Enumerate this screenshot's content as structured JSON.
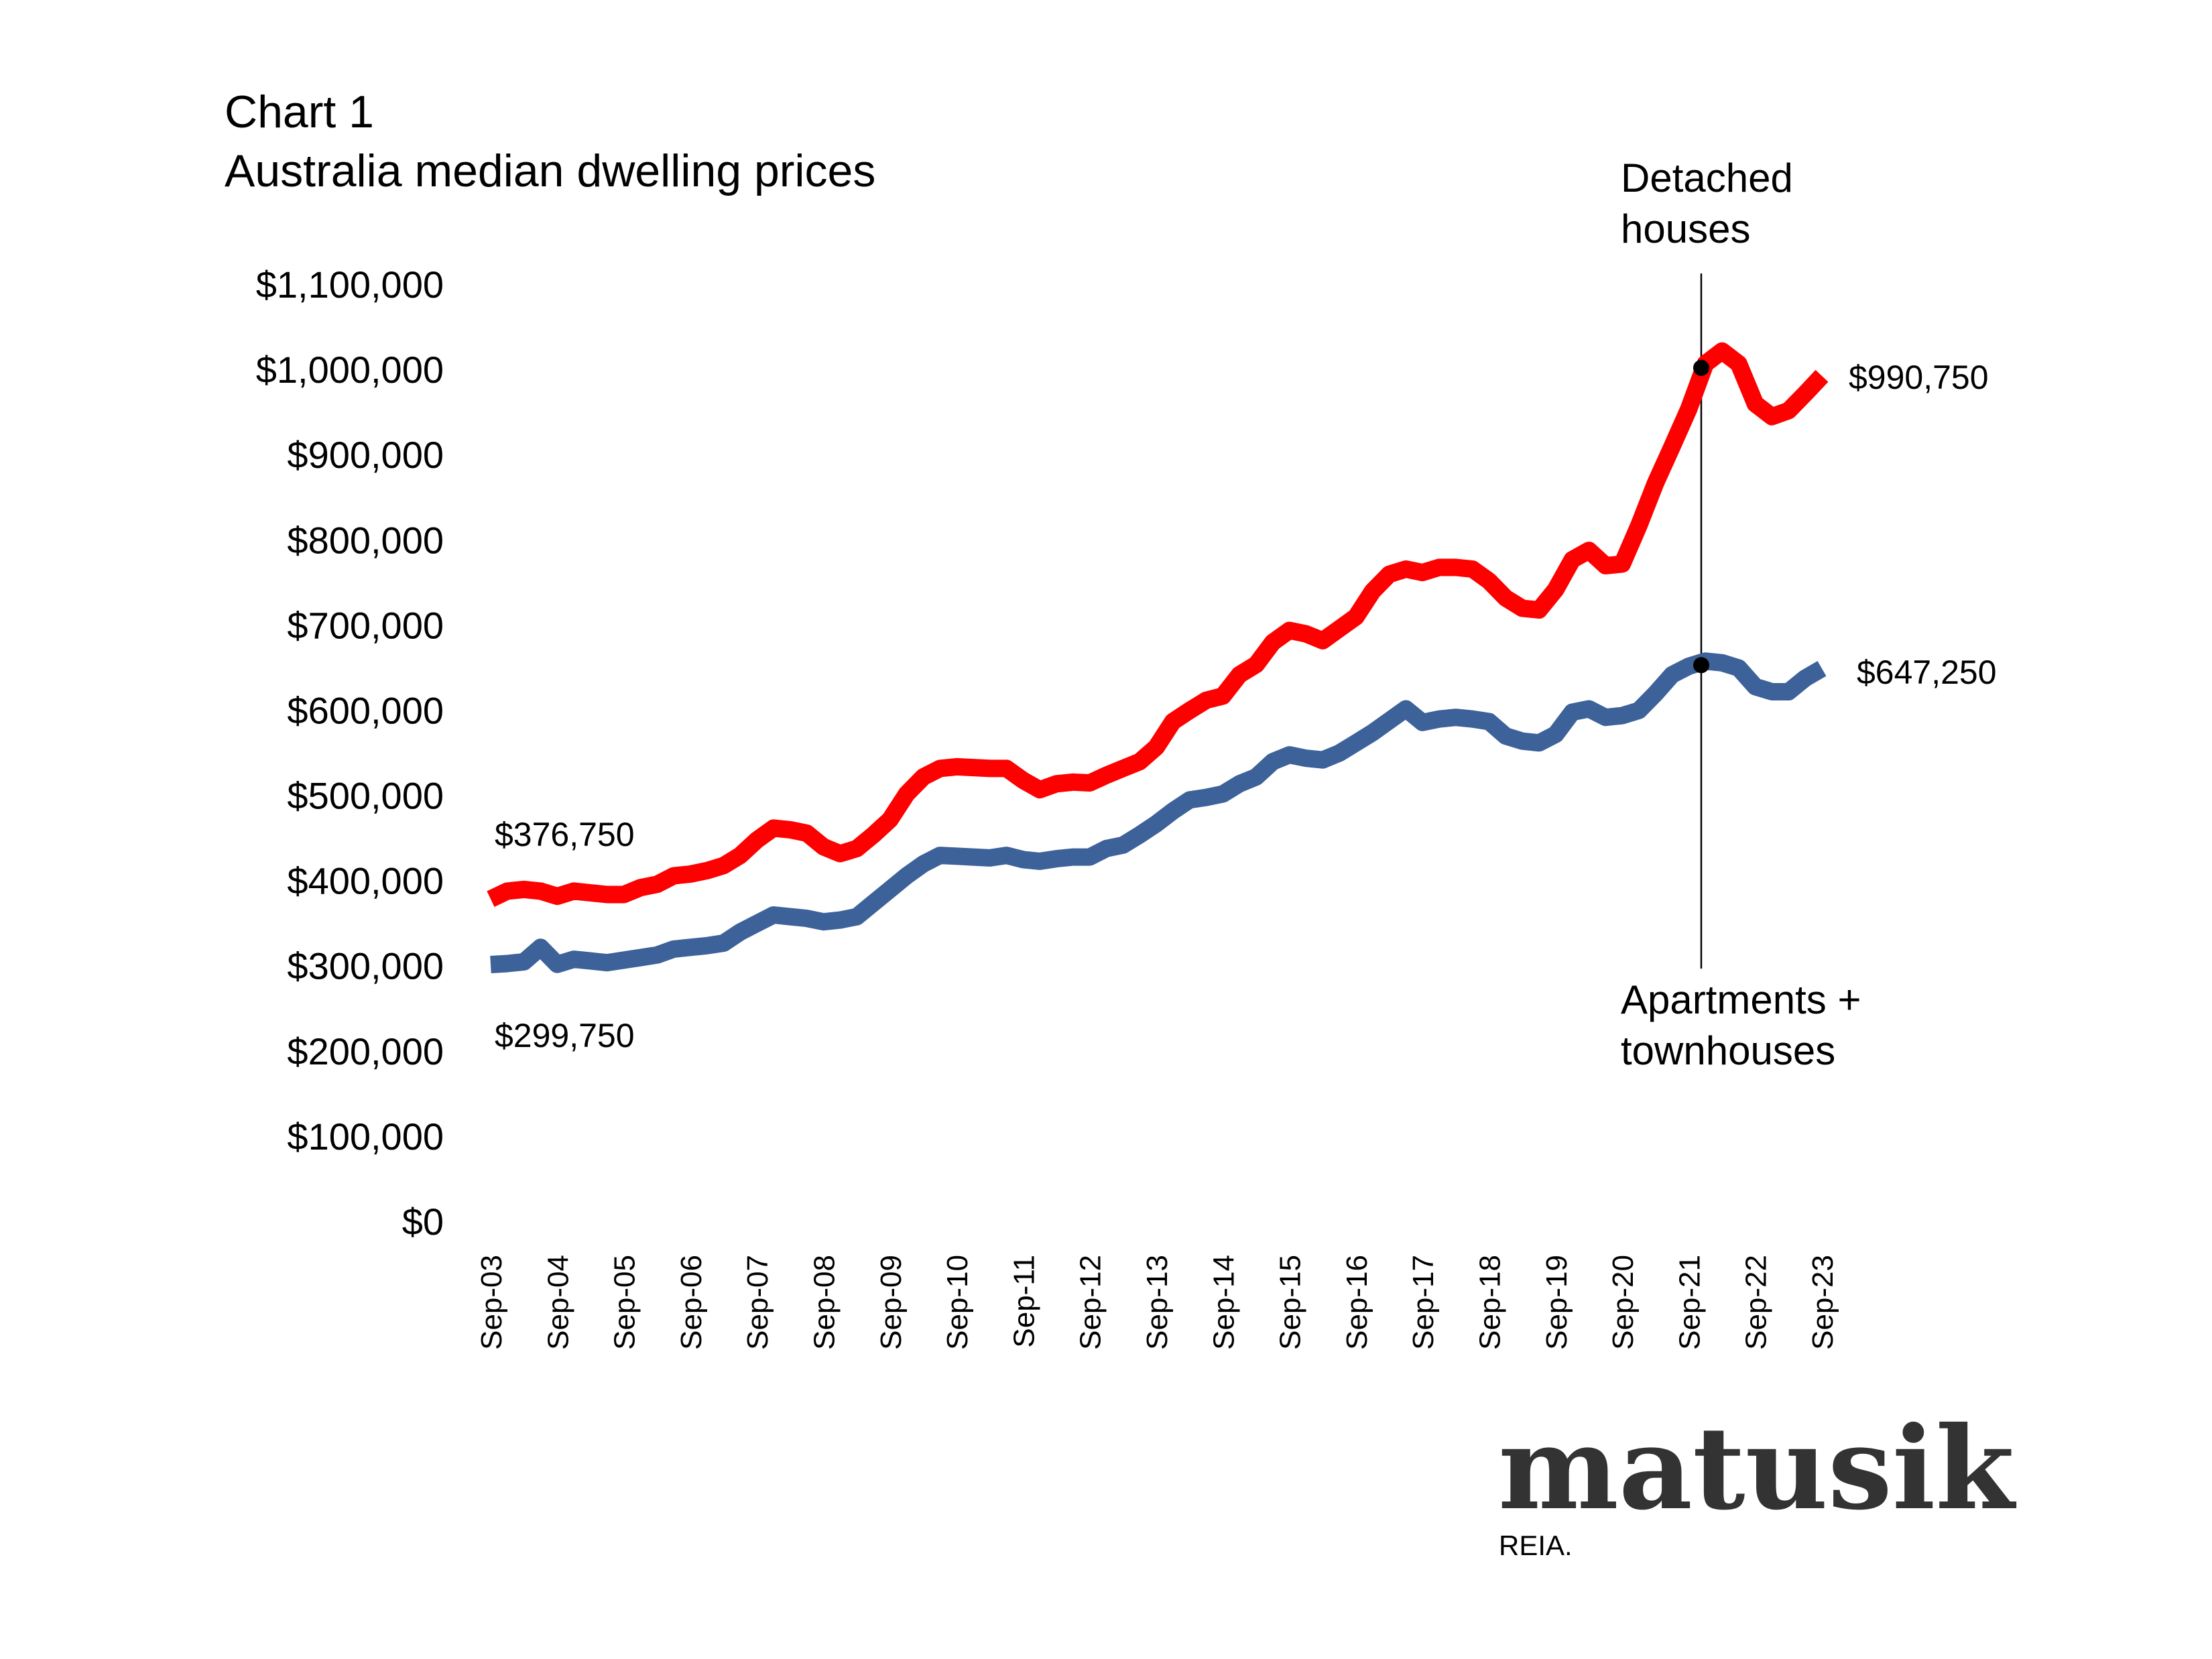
{
  "chart_data": {
    "type": "line",
    "title": "Chart 1",
    "subtitle": "Australia median dwelling prices",
    "xlabel": "",
    "ylabel": "",
    "ylim": [
      0,
      1100000
    ],
    "y_ticks": [
      0,
      100000,
      200000,
      300000,
      400000,
      500000,
      600000,
      700000,
      800000,
      900000,
      1000000,
      1100000
    ],
    "y_tick_labels": [
      "$0",
      "$100,000",
      "$200,000",
      "$300,000",
      "$400,000",
      "$500,000",
      "$600,000",
      "$700,000",
      "$800,000",
      "$900,000",
      "$1,000,000",
      "$1,100,000"
    ],
    "x_tick_labels": [
      "Sep-03",
      "Sep-04",
      "Sep-05",
      "Sep-06",
      "Sep-07",
      "Sep-08",
      "Sep-09",
      "Sep-10",
      "Sep-11",
      "Sep-12",
      "Sep-13",
      "Sep-14",
      "Sep-15",
      "Sep-16",
      "Sep-17",
      "Sep-18",
      "Sep-19",
      "Sep-20",
      "Sep-21",
      "Sep-22",
      "Sep-23"
    ],
    "grid": false,
    "legend": "none",
    "series": [
      {
        "name": "Detached houses",
        "color": "#ff0000",
        "values": [
          376750,
          386000,
          388000,
          386000,
          380000,
          386000,
          384000,
          382000,
          382000,
          390000,
          394000,
          404000,
          406000,
          410000,
          416000,
          428000,
          446000,
          460000,
          458000,
          454000,
          438000,
          430000,
          436000,
          452000,
          470000,
          500000,
          520000,
          530000,
          532000,
          531000,
          530000,
          530000,
          516000,
          505000,
          512000,
          514000,
          513000,
          522000,
          530000,
          538000,
          555000,
          585000,
          598000,
          610000,
          615000,
          640000,
          652000,
          678000,
          692000,
          688000,
          680000,
          694000,
          708000,
          738000,
          758000,
          764000,
          760000,
          766000,
          766000,
          764000,
          750000,
          730000,
          718000,
          716000,
          740000,
          775000,
          786000,
          768000,
          770000,
          815000,
          865000,
          908000,
          952000,
          1005000,
          1020000,
          1005000,
          958000,
          943000,
          950000,
          970000,
          990750
        ]
      },
      {
        "name": "Apartments + townhouses",
        "color": "#3d6299",
        "values": [
          299750,
          301000,
          303000,
          320000,
          300000,
          306000,
          304000,
          302000,
          305000,
          308000,
          311000,
          318000,
          320000,
          322000,
          325000,
          338000,
          348000,
          358000,
          356000,
          354000,
          350000,
          352000,
          356000,
          372000,
          388000,
          404000,
          418000,
          428000,
          427000,
          426000,
          425000,
          428000,
          423000,
          421000,
          424000,
          426000,
          426000,
          436000,
          440000,
          452000,
          465000,
          480000,
          493000,
          496000,
          500000,
          512000,
          520000,
          538000,
          546000,
          542000,
          540000,
          548000,
          560000,
          572000,
          586000,
          600000,
          584000,
          588000,
          590000,
          588000,
          585000,
          568000,
          562000,
          560000,
          570000,
          596000,
          600000,
          590000,
          592000,
          598000,
          618000,
          640000,
          650000,
          656000,
          654000,
          648000,
          626000,
          620000,
          620000,
          636000,
          647250
        ]
      }
    ],
    "annotations": {
      "start_detached": "$376,750",
      "start_apartments": "$299,750",
      "end_detached": "$990,750",
      "end_apartments": "$647,250",
      "label_detached": [
        "Detached",
        "houses"
      ],
      "label_apartments": [
        "Apartments +",
        "townhouses"
      ],
      "marker_index": 73
    }
  },
  "branding": {
    "logo": "matusik",
    "source": "REIA."
  }
}
